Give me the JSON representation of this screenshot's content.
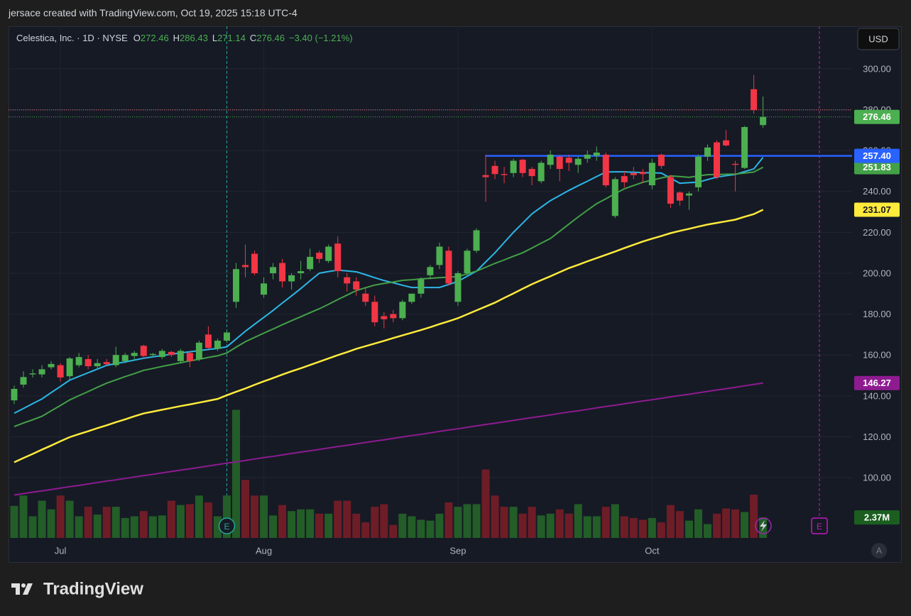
{
  "attribution": "jersace created with TradingView.com, Oct 19, 2025 15:18 UTC-4",
  "currency": "USD",
  "events": [
    "E",
    "E"
  ],
  "corner_button": "A",
  "logo": "TradingView",
  "chart_data": {
    "type": "candlestick",
    "title": "Celestica, Inc. · 1D · NYSE",
    "ohlc_labels": [
      "O",
      "H",
      "L",
      "C"
    ],
    "change_label": "−3.40 (−1.21%)",
    "up_color": "#4caf50",
    "down_color": "#f23645",
    "categories": [
      null,
      null,
      null,
      null,
      null,
      "Jul",
      null,
      null,
      null,
      null,
      null,
      null,
      null,
      null,
      null,
      null,
      null,
      null,
      null,
      null,
      null,
      null,
      null,
      null,
      null,
      null,
      null,
      "Aug",
      null,
      null,
      null,
      null,
      null,
      null,
      null,
      null,
      null,
      null,
      null,
      null,
      null,
      null,
      null,
      null,
      null,
      null,
      null,
      null,
      "Sep",
      null,
      null,
      null,
      null,
      null,
      null,
      null,
      null,
      null,
      null,
      null,
      null,
      null,
      null,
      null,
      null,
      null,
      null,
      null,
      null,
      "Oct",
      null,
      null,
      null,
      null,
      null,
      null,
      null,
      null,
      null,
      null,
      null,
      null
    ],
    "open": [
      137.8,
      145.5,
      150.5,
      150.5,
      154,
      155,
      149.6,
      155,
      158,
      154.5,
      156.5,
      155,
      157,
      159.5,
      164.5,
      160,
      159,
      161.5,
      157,
      161,
      158,
      170,
      163,
      167,
      186,
      204,
      209.5,
      189.5,
      200,
      205,
      196,
      200,
      202,
      210,
      206,
      214.5,
      198,
      196,
      190,
      186,
      179,
      180,
      178,
      186,
      190,
      199,
      204,
      211,
      186,
      200,
      211,
      248,
      252.5,
      248.5,
      249,
      255.5,
      251,
      245,
      253,
      257,
      256.5,
      253,
      256,
      257.5,
      258,
      228,
      247.5,
      249,
      249.5,
      243,
      258,
      247,
      239.5,
      238,
      242,
      257,
      264,
      265,
      253.5,
      251.5,
      290,
      272.46
    ],
    "high": [
      145,
      152,
      153,
      155,
      157,
      156,
      159,
      161,
      160,
      158,
      158,
      164,
      161,
      162,
      165,
      161,
      163,
      162,
      163,
      162,
      167,
      174,
      168,
      172,
      205,
      214,
      211,
      198,
      205,
      207,
      200,
      206,
      212,
      211,
      214,
      218,
      200,
      198,
      193,
      189,
      181,
      182,
      187,
      190,
      198,
      204,
      215,
      213,
      201,
      212,
      222,
      258,
      255,
      252,
      256,
      256,
      252,
      255,
      260,
      258,
      258,
      257,
      260,
      262,
      259,
      247,
      250,
      252,
      251,
      256,
      258.5,
      248,
      240,
      240,
      258,
      263,
      265,
      270,
      255,
      272,
      297,
      286.43
    ],
    "low": [
      136,
      144,
      149,
      149,
      153,
      147,
      148,
      154,
      153,
      153,
      155,
      154,
      156,
      158,
      158,
      159,
      158,
      159,
      156,
      154,
      157,
      163,
      162,
      166,
      183,
      198,
      199,
      188,
      197,
      193,
      192,
      197,
      201,
      205,
      205,
      198,
      191,
      189,
      184,
      174,
      173,
      176,
      177,
      185,
      188,
      197,
      202,
      194,
      184,
      199,
      210,
      235,
      246,
      244,
      247,
      247,
      243,
      244,
      251,
      245,
      250,
      249,
      254,
      255,
      242,
      227,
      242,
      246,
      244,
      241,
      251,
      232,
      233,
      231,
      240,
      255,
      246,
      262,
      240,
      251,
      278,
      271.14
    ],
    "close": [
      143.4,
      149.2,
      151,
      153,
      155.6,
      149,
      158.3,
      159,
      154.5,
      156,
      155.5,
      160,
      160,
      161,
      159.5,
      160.5,
      162,
      160,
      162,
      157,
      166,
      163.5,
      167,
      171,
      202,
      203,
      200,
      195,
      203,
      196,
      199,
      201,
      208,
      207,
      213,
      201,
      195,
      192,
      186,
      176,
      177.5,
      178,
      186,
      190,
      197,
      203,
      213,
      195,
      200,
      211,
      221,
      247,
      248.5,
      248,
      255,
      249,
      247.5,
      254,
      258,
      251,
      254,
      256,
      258,
      259,
      243,
      246,
      244.5,
      248,
      248.5,
      254,
      252.5,
      234,
      235.5,
      239,
      257,
      261.5,
      247,
      262.5,
      253,
      271.5,
      279.86,
      276.46
    ],
    "ylim": [
      70.5,
      320.8
    ],
    "yticks": [
      {
        "value": 100,
        "label": "100.00"
      },
      {
        "value": 120,
        "label": "120.00"
      },
      {
        "value": 140,
        "label": "140.00"
      },
      {
        "value": 160,
        "label": "160.00"
      },
      {
        "value": 180,
        "label": "180.00"
      },
      {
        "value": 200,
        "label": "200.00"
      },
      {
        "value": 220,
        "label": "220.00"
      },
      {
        "value": 240,
        "label": "240.00"
      },
      {
        "value": 260,
        "label": "260.00"
      },
      {
        "value": 280,
        "label": "280.00"
      },
      {
        "value": 300,
        "label": "300.00"
      }
    ],
    "hline": {
      "value": 257.4,
      "label": "257.40",
      "color": "#2962ff"
    },
    "series": [
      {
        "color": "#2cb7e6",
        "values": [
          131.5,
          133.8,
          136.2,
          138.5,
          141.6,
          144.6,
          147.7,
          149.5,
          151.3,
          153.1,
          154.9,
          155.8,
          156.6,
          157.5,
          158.4,
          159.1,
          159.7,
          160.4,
          161,
          161.6,
          162.1,
          162.7,
          163.2,
          164,
          167.8,
          171.6,
          175,
          178.4,
          181.8,
          185.4,
          188.9,
          192.5,
          196.3,
          200,
          200.8,
          201.5,
          201.1,
          200.7,
          199.3,
          197.8,
          196.4,
          195.3,
          194.1,
          193,
          193,
          193,
          193,
          194.5,
          196,
          198.5,
          201,
          205.5,
          210,
          215,
          220,
          224.5,
          229,
          232.3,
          235.5,
          238,
          240.5,
          242.8,
          245,
          247.3,
          249.5,
          249.6,
          249.6,
          249.4,
          249.2,
          249.1,
          249,
          246.5,
          244,
          244.3,
          244.5,
          245.8,
          247,
          247.7,
          248.3,
          249.7,
          251,
          256.66
        ]
      },
      {
        "color": "#43a047",
        "values": [
          125,
          126.7,
          128.3,
          130,
          132.7,
          135.3,
          138,
          140.1,
          142.1,
          144.2,
          146.2,
          147.8,
          149.4,
          150.9,
          152.5,
          153.4,
          154.4,
          155.3,
          156.2,
          157.1,
          157.9,
          158.8,
          159.6,
          161,
          163.8,
          166.5,
          168.6,
          170.7,
          172.7,
          174.8,
          176.8,
          178.7,
          180.7,
          182.6,
          184.8,
          187.1,
          189.3,
          191.5,
          192.9,
          194.2,
          195,
          195.7,
          196.5,
          196.8,
          197.2,
          197.5,
          197.8,
          198.1,
          198.3,
          199.7,
          201,
          202.9,
          204.8,
          206.5,
          208.3,
          210,
          212.3,
          214.7,
          217,
          220.5,
          224,
          227.5,
          230.8,
          234,
          236.4,
          238.9,
          241.3,
          242.9,
          244.5,
          245.5,
          246.6,
          247.6,
          247.3,
          246.9,
          247.6,
          248.2,
          248.3,
          248.4,
          248.5,
          249,
          249.5,
          251.83
        ]
      },
      {
        "color": "#ffeb3b",
        "values": [
          107.5,
          109.6,
          111.6,
          113.7,
          115.7,
          117.8,
          119.8,
          121.3,
          122.7,
          124.2,
          125.6,
          127.1,
          128.5,
          130,
          131.4,
          132.3,
          133.2,
          134.1,
          135,
          135.8,
          136.7,
          137.6,
          138.5,
          140.3,
          142,
          143.6,
          145.4,
          147.1,
          148.7,
          150.4,
          152,
          153.5,
          155.1,
          156.7,
          158.3,
          159.9,
          161.4,
          163,
          164.3,
          165.6,
          166.9,
          168.3,
          169.6,
          170.9,
          172.2,
          173.6,
          175.1,
          176.5,
          178,
          179.9,
          181.8,
          183.7,
          185.6,
          187.9,
          190.1,
          192.4,
          194.6,
          196.6,
          198.5,
          200.5,
          202.5,
          204.1,
          205.8,
          207.4,
          209,
          210.6,
          212.3,
          213.9,
          215.5,
          216.9,
          218.2,
          219.6,
          220.7,
          221.7,
          222.8,
          223.8,
          224.6,
          225.4,
          226.2,
          227.6,
          228.9,
          231.07
        ]
      },
      {
        "color": "#8e1b90",
        "values": [
          91.5,
          92.2,
          92.9,
          93.5,
          94.2,
          94.9,
          95.6,
          96.2,
          96.9,
          97.6,
          98.3,
          98.9,
          99.6,
          100.3,
          101,
          101.6,
          102.3,
          103,
          103.7,
          104.3,
          105,
          105.7,
          106.4,
          107.1,
          107.7,
          108.4,
          109.1,
          109.8,
          110.4,
          111.1,
          111.8,
          112.5,
          113.1,
          113.8,
          114.5,
          115.2,
          115.8,
          116.5,
          117.2,
          117.9,
          118.5,
          119.2,
          119.9,
          120.6,
          121.2,
          121.9,
          122.6,
          123.3,
          123.9,
          124.6,
          125.3,
          126,
          126.6,
          127.3,
          128,
          128.7,
          129.4,
          130,
          130.7,
          131.4,
          132.1,
          132.7,
          133.4,
          134.1,
          134.8,
          135.4,
          136.1,
          136.8,
          137.5,
          138.1,
          138.8,
          139.5,
          140.2,
          140.8,
          141.5,
          142.2,
          142.9,
          143.5,
          144.2,
          144.9,
          145.6,
          146.27
        ]
      }
    ],
    "volume": {
      "up_color": "#235d28",
      "down_color": "#6e1d27",
      "label_color": "#1b5e20",
      "ylim": [
        0,
        15
      ],
      "values": [
        3.7,
        4.9,
        2.5,
        4.3,
        3.3,
        4.9,
        4.3,
        2.5,
        3.6,
        2.7,
        3.6,
        3.6,
        2.3,
        2.5,
        3.1,
        2.5,
        2.6,
        4.3,
        3.8,
        3.9,
        4.9,
        4.1,
        2.5,
        4.9,
        14.8,
        6.7,
        4.9,
        4.9,
        2.6,
        3.8,
        3.1,
        3.3,
        3.3,
        2.8,
        2.8,
        4.3,
        4.3,
        2.8,
        1.8,
        3.6,
        3.9,
        1.5,
        2.8,
        2.5,
        2.1,
        2.0,
        2.8,
        4.1,
        3.6,
        3.9,
        3.9,
        7.9,
        4.9,
        3.6,
        3.6,
        2.8,
        3.6,
        2.6,
        2.8,
        3.3,
        2.8,
        3.9,
        2.5,
        2.5,
        3.6,
        3.9,
        2.5,
        2.3,
        2.1,
        2.3,
        1.8,
        3.8,
        3.1,
        2.0,
        3.3,
        1.6,
        2.8,
        3.4,
        3.3,
        3.0,
        5.0,
        2.37
      ],
      "value_labels": [
        null,
        null,
        null,
        null,
        null,
        null,
        null,
        null,
        null,
        null,
        null,
        null,
        null,
        null,
        null,
        null,
        null,
        null,
        null,
        null,
        null,
        null,
        null,
        null,
        null,
        null,
        null,
        null,
        null,
        null,
        null,
        null,
        null,
        null,
        null,
        null,
        null,
        null,
        null,
        null,
        null,
        null,
        null,
        null,
        null,
        null,
        null,
        null,
        null,
        null,
        null,
        null,
        null,
        null,
        null,
        null,
        null,
        null,
        null,
        null,
        null,
        null,
        null,
        null,
        null,
        null,
        null,
        null,
        null,
        null,
        null,
        null,
        null,
        null,
        null,
        null,
        null,
        null,
        null,
        null,
        null,
        "2.37M"
      ]
    }
  }
}
